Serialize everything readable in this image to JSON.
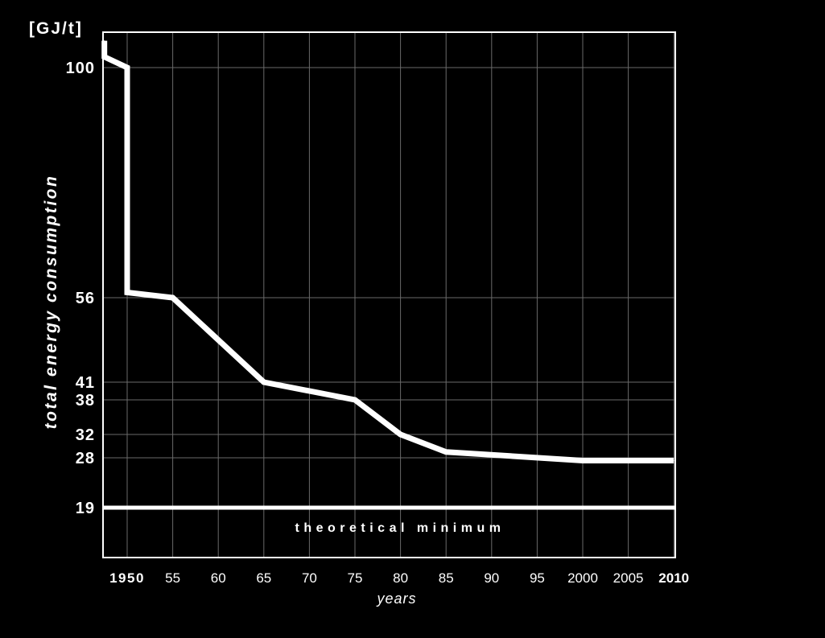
{
  "chart_data": {
    "type": "line",
    "ylabel": "total energy consumption",
    "unit": "[GJ/t]",
    "xlabel": "years",
    "x_tick_labels": [
      "1950",
      "55",
      "60",
      "65",
      "70",
      "75",
      "80",
      "85",
      "90",
      "95",
      "2000",
      "2005",
      "2010"
    ],
    "x_tick_years": [
      1950,
      1955,
      1960,
      1965,
      1970,
      1975,
      1980,
      1985,
      1990,
      1995,
      2000,
      2005,
      2010
    ],
    "bold_x_ticks": [
      "2010"
    ],
    "y_ticks": [
      100,
      56,
      41,
      38,
      32,
      28,
      19
    ],
    "series": [
      {
        "x": [
          1947.5,
          1947.5,
          1950,
          1950,
          1955,
          1965,
          1975,
          1980,
          1985,
          2000,
          2010
        ],
        "y": [
          105,
          102,
          100,
          57,
          56,
          41,
          38,
          32,
          29,
          27.5,
          27.5
        ]
      }
    ],
    "reference_line": {
      "y": 19,
      "label": "theoretical minimum"
    },
    "grid": true,
    "colors": {
      "background": "#000000",
      "line": "#ffffff",
      "grid": "#6a6a6a"
    }
  }
}
